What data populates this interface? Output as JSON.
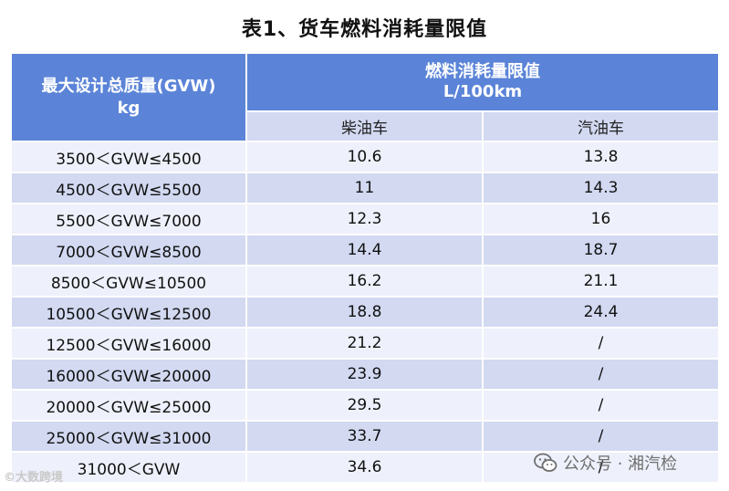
{
  "title": "表1、货车燃料消耗量限值",
  "header": {
    "left_line1": "最大设计总质量(GVW)",
    "left_line2": "kg",
    "top_line1": "燃料消耗量限值",
    "top_line2": "L/100km",
    "diesel": "柴油车",
    "gasoline": "汽油车"
  },
  "rows": [
    {
      "range": "3500＜GVW≤4500",
      "diesel": "10.6",
      "gasoline": "13.8"
    },
    {
      "range": "4500＜GVW≤5500",
      "diesel": "11",
      "gasoline": "14.3"
    },
    {
      "range": "5500＜GVW≤7000",
      "diesel": "12.3",
      "gasoline": "16"
    },
    {
      "range": "7000＜GVW≤8500",
      "diesel": "14.4",
      "gasoline": "18.7"
    },
    {
      "range": "8500＜GVW≤10500",
      "diesel": "16.2",
      "gasoline": "21.1"
    },
    {
      "range": "10500＜GVW≤12500",
      "diesel": "18.8",
      "gasoline": "24.4"
    },
    {
      "range": "12500＜GVW≤16000",
      "diesel": "21.2",
      "gasoline": "/"
    },
    {
      "range": "16000＜GVW≤20000",
      "diesel": "23.9",
      "gasoline": "/"
    },
    {
      "range": "20000＜GVW≤25000",
      "diesel": "29.5",
      "gasoline": "/"
    },
    {
      "range": "25000＜GVW≤31000",
      "diesel": "33.7",
      "gasoline": "/"
    },
    {
      "range": "31000＜GVW",
      "diesel": "34.6",
      "gasoline": "/"
    }
  ],
  "watermark": {
    "left": "©大数跨境",
    "right": "公众号 · 湘汽检",
    "right_icon": "wechat-icon"
  },
  "colors": {
    "header_blue": "#5b84d8",
    "row_light": "#eef1fb",
    "row_dark": "#d2d9f1"
  }
}
